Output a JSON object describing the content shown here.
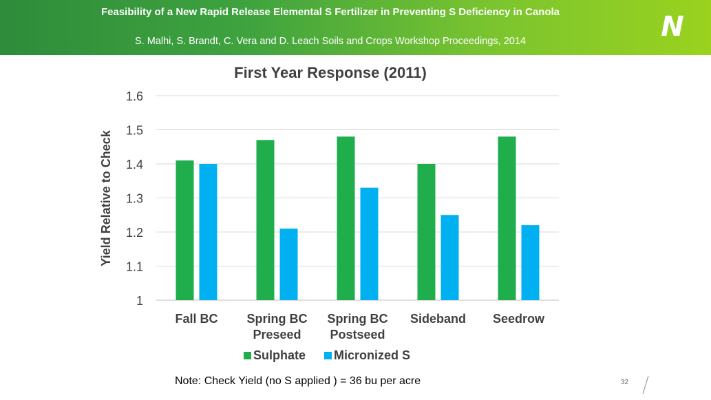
{
  "header": {
    "title": "Feasibility of a New Rapid Release Elemental S Fertilizer in Preventing S Deficiency in Canola",
    "subtitle": "S. Malhi, S. Brandt, C. Vera and D. Leach Soils and Crops Workshop Proceedings, 2014",
    "logo_letter": "N",
    "logo_icon": "company-n-leaf-logo"
  },
  "footer": {
    "note": "Note: Check Yield (no S applied ) = 36 bu per acre",
    "page_number": "32"
  },
  "colors": {
    "sulphate": "#1fae4b",
    "micronized": "#00b0f0",
    "banner_dark": "#2e8c3a",
    "banner_light": "#9ad21e"
  },
  "chart_data": {
    "type": "bar",
    "title": "First Year Response (2011)",
    "xlabel": "",
    "ylabel": "Yield Relative to Check",
    "categories": [
      [
        "Fall BC"
      ],
      [
        "Spring BC",
        "Preseed"
      ],
      [
        "Spring BC",
        "Postseed"
      ],
      [
        "Sideband"
      ],
      [
        "Seedrow"
      ]
    ],
    "series": [
      {
        "name": "Sulphate",
        "values": [
          1.41,
          1.47,
          1.48,
          1.4,
          1.48
        ]
      },
      {
        "name": "Micronized S",
        "values": [
          1.4,
          1.21,
          1.33,
          1.25,
          1.22
        ]
      }
    ],
    "ylim": [
      1,
      1.6
    ],
    "yticks": [
      1,
      1.1,
      1.2,
      1.3,
      1.4,
      1.5,
      1.6
    ],
    "ytick_labels": [
      "1",
      "1.1",
      "1.2",
      "1.3",
      "1.4",
      "1.5",
      "1.6"
    ],
    "grid": true,
    "legend": "bottom"
  }
}
